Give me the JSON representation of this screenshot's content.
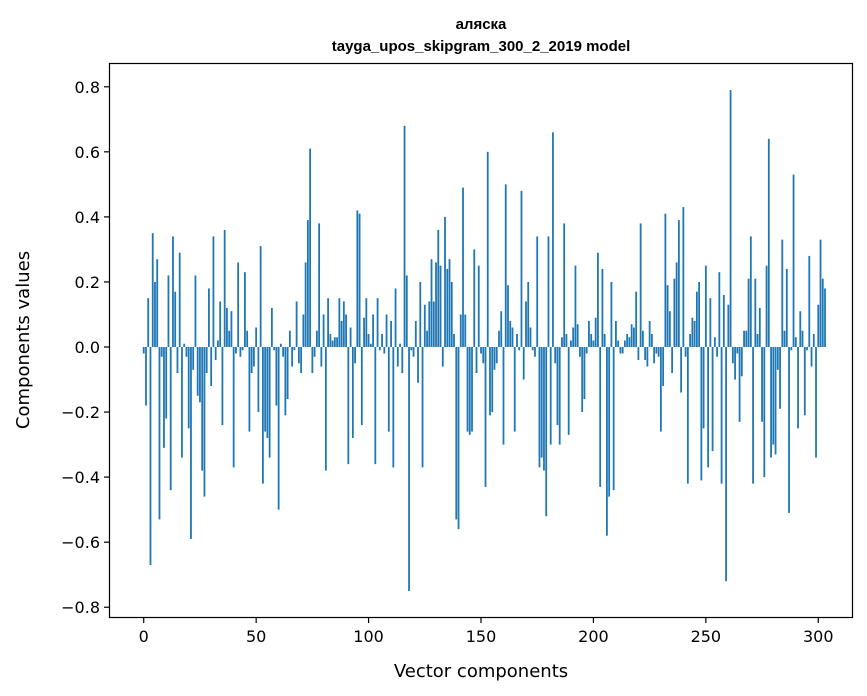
{
  "chart_data": {
    "type": "bar",
    "title": "аляска",
    "subtitle": "tayga_upos_skipgram_300_2_2019 model",
    "xlabel": "Vector components",
    "ylabel": "Components values",
    "xlim": [
      -15,
      315
    ],
    "ylim": [
      -0.83,
      0.87
    ],
    "xticks": [
      0,
      50,
      100,
      150,
      200,
      250,
      300
    ],
    "xtick_labels": [
      "0",
      "50",
      "100",
      "150",
      "200",
      "250",
      "300"
    ],
    "yticks": [
      -0.8,
      -0.6,
      -0.4,
      -0.2,
      0.0,
      0.2,
      0.4,
      0.6,
      0.8
    ],
    "ytick_labels": [
      "−0.8",
      "−0.6",
      "−0.4",
      "−0.2",
      "0.0",
      "0.2",
      "0.4",
      "0.6",
      "0.8"
    ],
    "grid": false,
    "bar_color": "#1f77b4",
    "x_start": 0,
    "values": [
      -0.02,
      -0.18,
      0.15,
      -0.67,
      0.35,
      0.2,
      0.27,
      -0.53,
      -0.03,
      -0.31,
      -0.22,
      0.22,
      -0.44,
      0.34,
      0.17,
      -0.08,
      0.29,
      -0.34,
      0.01,
      -0.03,
      -0.25,
      -0.59,
      -0.07,
      0.22,
      -0.15,
      -0.17,
      -0.38,
      -0.46,
      -0.08,
      0.18,
      -0.12,
      0.34,
      -0.04,
      0.02,
      0.14,
      -0.24,
      0.36,
      0.12,
      0.05,
      0.11,
      -0.37,
      -0.02,
      0.26,
      -0.03,
      -0.01,
      0.23,
      0.05,
      -0.26,
      -0.08,
      -0.06,
      0.06,
      -0.2,
      0.31,
      -0.42,
      -0.26,
      -0.28,
      -0.34,
      0.12,
      -0.01,
      -0.18,
      -0.5,
      0.01,
      -0.03,
      -0.21,
      -0.16,
      0.05,
      -0.06,
      -0.01,
      0.14,
      -0.05,
      -0.08,
      0.1,
      0.26,
      0.39,
      0.61,
      -0.08,
      -0.03,
      0.05,
      0.38,
      -0.06,
      0.1,
      -0.38,
      0.15,
      0.04,
      0.02,
      0.03,
      0.03,
      0.15,
      0.08,
      0.14,
      0.1,
      -0.36,
      0.06,
      -0.28,
      -0.05,
      0.42,
      0.41,
      -0.24,
      0.09,
      0.15,
      0.04,
      0.01,
      0.1,
      -0.36,
      0.15,
      -0.01,
      0.04,
      -0.02,
      0.1,
      -0.26,
      0.08,
      -0.37,
      0.18,
      -0.06,
      0.01,
      -0.08,
      0.68,
      0.22,
      -0.75,
      -0.01,
      -0.03,
      0.08,
      -0.11,
      0.2,
      -0.37,
      0.13,
      0.05,
      0.14,
      0.27,
      0.14,
      0.26,
      0.36,
      0.25,
      -0.06,
      0.4,
      0.24,
      0.27,
      0.2,
      0.04,
      -0.53,
      -0.56,
      0.1,
      0.49,
      0.1,
      -0.26,
      -0.27,
      -0.26,
      0.3,
      -0.08,
      0.25,
      -0.02,
      -0.05,
      -0.43,
      0.6,
      -0.21,
      -0.2,
      -0.07,
      -0.05,
      0.05,
      0.11,
      -0.3,
      0.5,
      0.19,
      0.08,
      0.06,
      -0.26,
      0.04,
      -0.01,
      0.48,
      -0.1,
      0.14,
      0.2,
      0.06,
      -0.01,
      -0.03,
      0.34,
      -0.37,
      -0.34,
      -0.38,
      -0.52,
      0.34,
      -0.3,
      0.66,
      -0.05,
      -0.24,
      -0.3,
      0.03,
      0.38,
      0.04,
      -0.27,
      0.02,
      0.06,
      0.25,
      0.07,
      -0.03,
      -0.2,
      -0.16,
      -0.02,
      0.08,
      0.04,
      0.02,
      0.09,
      0.29,
      -0.43,
      0.24,
      0.04,
      -0.58,
      -0.46,
      0.2,
      -0.44,
      0.08,
      0.02,
      -0.02,
      -0.02,
      0.02,
      0.04,
      0.03,
      0.07,
      0.06,
      0.17,
      -0.04,
      0.38,
      0.05,
      -0.04,
      -0.06,
      0.08,
      0.04,
      -0.05,
      -0.02,
      -0.03,
      -0.26,
      -0.12,
      0.41,
      0.19,
      0.11,
      -0.08,
      0.21,
      0.26,
      0.39,
      -0.14,
      0.43,
      -0.03,
      -0.42,
      0.04,
      0.09,
      0.08,
      0.17,
      0.2,
      -0.41,
      -0.25,
      0.25,
      -0.37,
      0.15,
      -0.32,
      0.03,
      -0.03,
      0.23,
      -0.42,
      0.16,
      -0.72,
      0.13,
      0.79,
      -0.05,
      -0.1,
      -0.02,
      -0.23,
      -0.09,
      0.05,
      0.05,
      0.21,
      0.34,
      -0.42,
      0.21,
      0.04,
      0.12,
      -0.23,
      -0.4,
      0.25,
      0.64,
      -0.34,
      -0.3,
      -0.33,
      -0.07,
      -0.19,
      0.33,
      0.05,
      0.24,
      -0.51,
      -0.01,
      0.53,
      0.03,
      -0.25,
      0.11,
      0.05,
      -0.21,
      -0.01,
      0.28,
      -0.06,
      0.04,
      -0.34,
      0.13,
      0.33,
      0.21,
      0.18
    ]
  }
}
